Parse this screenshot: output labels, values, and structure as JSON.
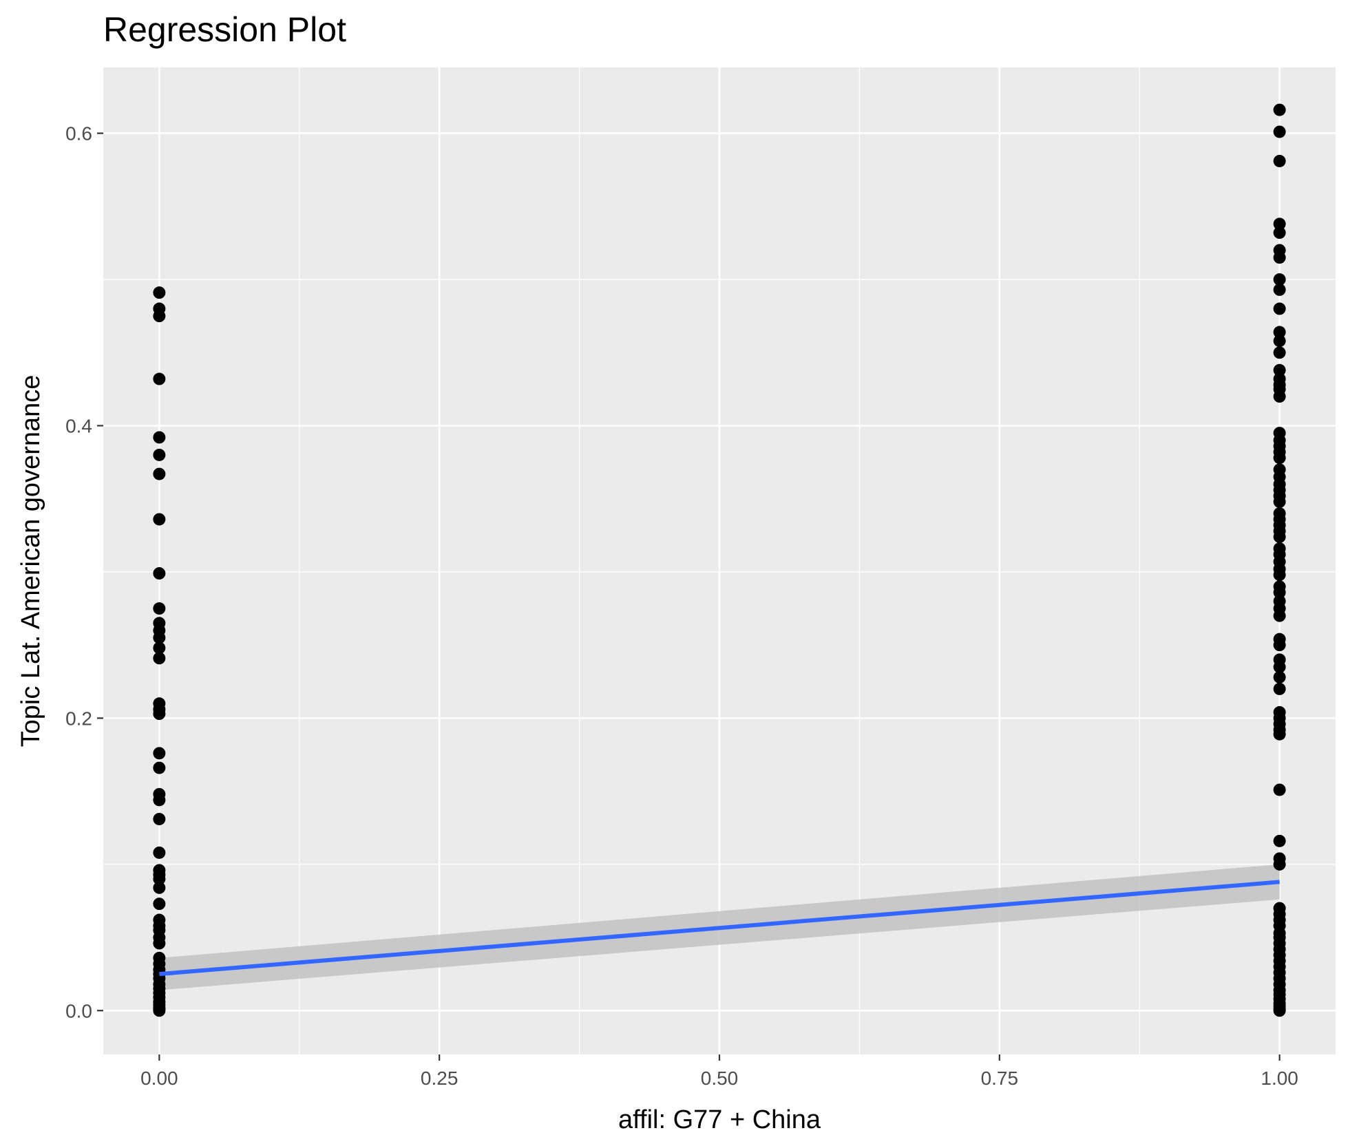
{
  "chart_data": {
    "type": "scatter",
    "title": "Regression Plot",
    "xlabel": "affil: G77 + China",
    "ylabel": "Topic Lat. American governance",
    "xlim": [
      -0.05,
      1.05
    ],
    "ylim": [
      -0.03,
      0.645
    ],
    "x_ticks": [
      0.0,
      0.25,
      0.5,
      0.75,
      1.0
    ],
    "x_tick_labels": [
      "0.00",
      "0.25",
      "0.50",
      "0.75",
      "1.00"
    ],
    "y_ticks": [
      0.0,
      0.2,
      0.4,
      0.6
    ],
    "y_tick_labels": [
      "0.0",
      "0.2",
      "0.4",
      "0.6"
    ],
    "grid": true,
    "colors": {
      "panel": "#ebebeb",
      "grid": "#ffffff",
      "points": "#000000",
      "fit_line": "#3366ff",
      "ribbon": "#c2c2c2"
    },
    "series": [
      {
        "x": 0,
        "values": [
          0.491,
          0.48,
          0.475,
          0.432,
          0.392,
          0.38,
          0.367,
          0.336,
          0.299,
          0.275,
          0.265,
          0.26,
          0.255,
          0.248,
          0.241,
          0.21,
          0.206,
          0.203,
          0.176,
          0.166,
          0.148,
          0.144,
          0.131,
          0.108,
          0.096,
          0.093,
          0.09,
          0.084,
          0.073,
          0.062,
          0.058,
          0.055,
          0.05,
          0.046,
          0.036,
          0.032,
          0.028,
          0.025,
          0.022,
          0.018,
          0.015,
          0.012,
          0.009,
          0.006,
          0.004,
          0.002,
          0.001,
          0.0
        ]
      },
      {
        "x": 1,
        "values": [
          0.616,
          0.601,
          0.581,
          0.538,
          0.532,
          0.52,
          0.515,
          0.5,
          0.493,
          0.48,
          0.464,
          0.458,
          0.45,
          0.438,
          0.432,
          0.428,
          0.425,
          0.42,
          0.395,
          0.39,
          0.386,
          0.382,
          0.378,
          0.37,
          0.365,
          0.36,
          0.356,
          0.352,
          0.348,
          0.34,
          0.336,
          0.332,
          0.328,
          0.324,
          0.316,
          0.312,
          0.307,
          0.302,
          0.298,
          0.29,
          0.286,
          0.28,
          0.275,
          0.27,
          0.254,
          0.25,
          0.24,
          0.235,
          0.228,
          0.22,
          0.204,
          0.2,
          0.196,
          0.192,
          0.189,
          0.151,
          0.116,
          0.104,
          0.1,
          0.07,
          0.066,
          0.062,
          0.058,
          0.053,
          0.05,
          0.046,
          0.042,
          0.038,
          0.034,
          0.03,
          0.026,
          0.022,
          0.018,
          0.014,
          0.011,
          0.008,
          0.005,
          0.003,
          0.001,
          0.0
        ]
      }
    ],
    "fit": {
      "x": [
        0,
        1
      ],
      "y": [
        0.025,
        0.088
      ],
      "ci_lower": [
        0.014,
        0.076
      ],
      "ci_upper": [
        0.036,
        0.1
      ]
    }
  }
}
